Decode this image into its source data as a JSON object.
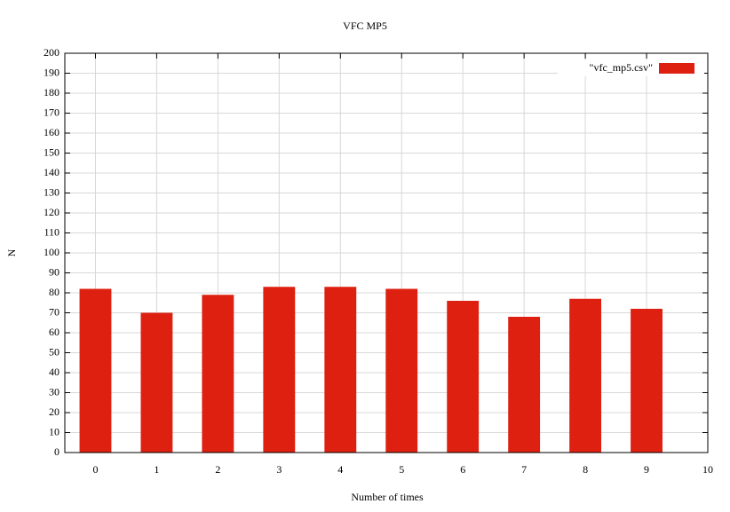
{
  "chart_data": {
    "type": "bar",
    "title": "VFC MP5",
    "x_label": "Number of times",
    "y_label": "N",
    "x": [
      0,
      1,
      2,
      3,
      4,
      5,
      6,
      7,
      8,
      9
    ],
    "series": [
      {
        "name": "\"vfc_mp5.csv\"",
        "color": "#dd2010",
        "values": [
          82,
          70,
          79,
          83,
          83,
          82,
          76,
          68,
          77,
          72
        ]
      }
    ],
    "xlim": [
      -0.5,
      10
    ],
    "xticks": [
      0,
      1,
      2,
      3,
      4,
      5,
      6,
      7,
      8,
      9,
      10
    ],
    "ylim": [
      0,
      200
    ],
    "yticks": [
      0,
      10,
      20,
      30,
      40,
      50,
      60,
      70,
      80,
      90,
      100,
      110,
      120,
      130,
      140,
      150,
      160,
      170,
      180,
      190,
      200
    ],
    "grid": true,
    "legend_position": "top-right"
  }
}
